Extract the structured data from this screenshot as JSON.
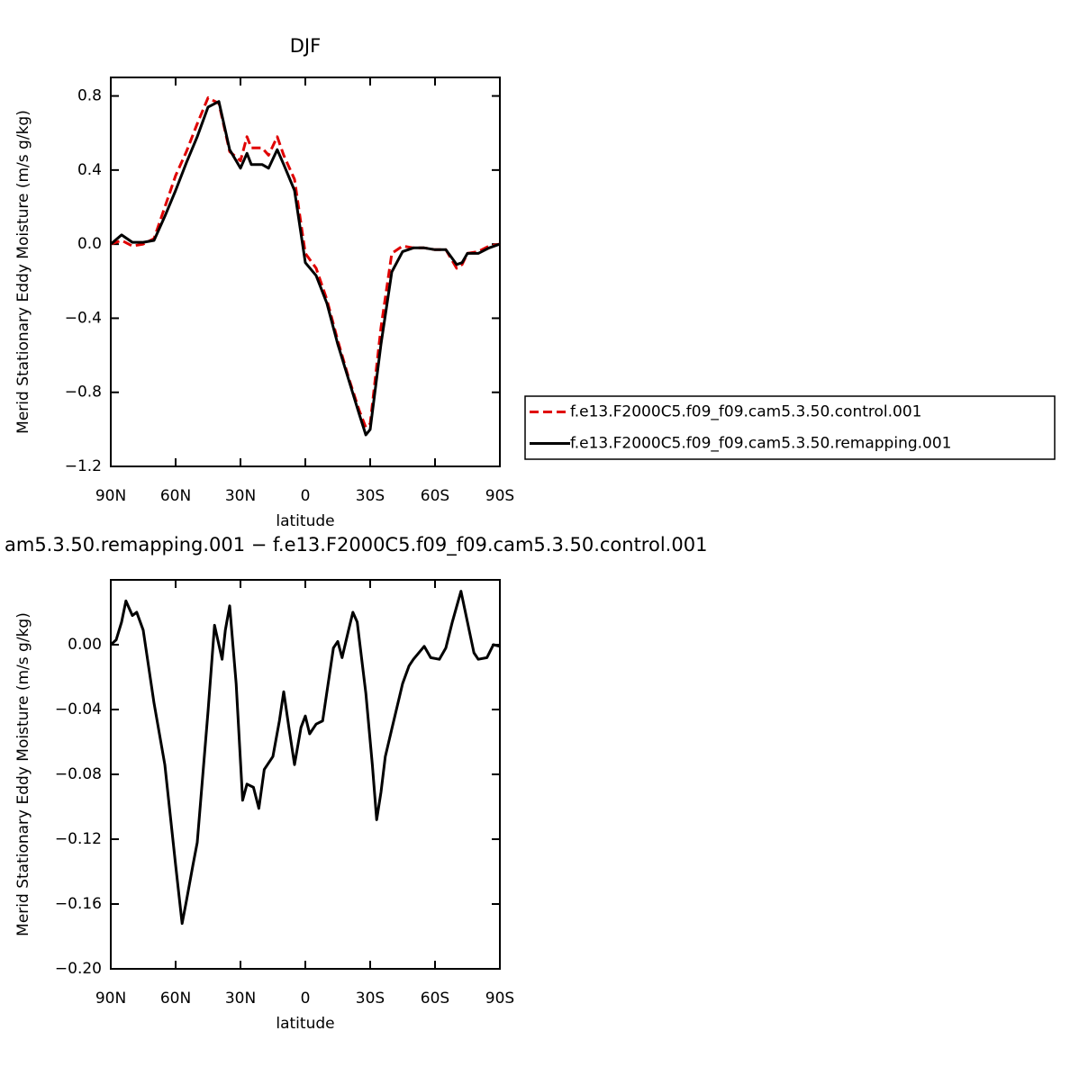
{
  "chart_data": [
    {
      "type": "line",
      "title": "DJF",
      "y_label": "Merid Stationary Eddy Moisture (m/s g/kg)",
      "x_label": "latitude",
      "x": [
        90,
        85,
        80,
        75,
        70,
        65,
        60,
        55,
        50,
        45,
        40,
        35,
        30,
        27,
        25,
        20,
        17,
        13,
        10,
        5,
        0,
        -5,
        -10,
        -15,
        -20,
        -25,
        -28,
        -30,
        -35,
        -40,
        -45,
        -50,
        -55,
        -60,
        -65,
        -70,
        -72.5,
        -75,
        -80,
        -85,
        -90
      ],
      "series": [
        {
          "name": "f.e13.F2000C5.f09_f09.cam5.3.50.control.001",
          "color": "#e00000",
          "line_style": "dashed",
          "values": [
            0.0,
            0.02,
            -0.01,
            0.0,
            0.03,
            0.2,
            0.37,
            0.5,
            0.65,
            0.79,
            0.76,
            0.5,
            0.45,
            0.58,
            0.52,
            0.52,
            0.48,
            0.58,
            0.48,
            0.35,
            -0.05,
            -0.13,
            -0.3,
            -0.52,
            -0.72,
            -0.9,
            -0.99,
            -0.97,
            -0.45,
            -0.05,
            -0.01,
            -0.02,
            -0.02,
            -0.03,
            -0.03,
            -0.13,
            -0.11,
            -0.05,
            -0.04,
            -0.01,
            0.0
          ]
        },
        {
          "name": "f.e13.F2000C5.f09_f09.cam5.3.50.remapping.001",
          "color": "#000000",
          "line_style": "solid",
          "values": [
            0.0,
            0.05,
            0.01,
            0.01,
            0.02,
            0.15,
            0.29,
            0.44,
            0.58,
            0.74,
            0.77,
            0.51,
            0.41,
            0.49,
            0.43,
            0.43,
            0.41,
            0.51,
            0.43,
            0.29,
            -0.1,
            -0.17,
            -0.32,
            -0.54,
            -0.73,
            -0.92,
            -1.03,
            -1.0,
            -0.54,
            -0.15,
            -0.04,
            -0.02,
            -0.02,
            -0.03,
            -0.03,
            -0.11,
            -0.1,
            -0.05,
            -0.05,
            -0.02,
            0.0
          ]
        }
      ],
      "xlim": [
        90,
        -90
      ],
      "xticks": [
        {
          "value": 90,
          "label": "90N"
        },
        {
          "value": 60,
          "label": "60N"
        },
        {
          "value": 30,
          "label": "30N"
        },
        0,
        {
          "value": -30,
          "label": "30S"
        },
        {
          "value": -60,
          "label": "60S"
        },
        {
          "value": -90,
          "label": "90S"
        }
      ],
      "ylim": [
        -1.2,
        0.9
      ],
      "yticks": [
        {
          "value": -1.2,
          "label": "−1.2"
        },
        {
          "value": -0.8,
          "label": "−0.8"
        },
        {
          "value": -0.4,
          "label": "−0.4"
        },
        {
          "value": 0,
          "label": "0.0"
        },
        0.4,
        0.8
      ],
      "legend": "right"
    },
    {
      "type": "line",
      "title": "am5.3.50.remapping.001 − f.e13.F2000C5.f09_f09.cam5.3.50.control.001",
      "y_label": "Merid Stationary Eddy Moisture (m/s g/kg)",
      "x_label": "latitude",
      "x": [
        90,
        87.5,
        85,
        83,
        80,
        78,
        75,
        70,
        65,
        60,
        57,
        55,
        52,
        50,
        45,
        42,
        38.5,
        37,
        35,
        32,
        29,
        27,
        24,
        21.5,
        19,
        15,
        12,
        10,
        7.5,
        5,
        2,
        0,
        -2,
        -5,
        -8,
        -13,
        -15,
        -17,
        -20,
        -22,
        -24,
        -28,
        -31,
        -33,
        -35,
        -37,
        -40,
        -45,
        -48,
        -50,
        -55,
        -58,
        -62,
        -65,
        -68,
        -72,
        -75,
        -78,
        -80,
        -84,
        -87,
        -90
      ],
      "series": [
        {
          "color": "#000000",
          "line_style": "solid",
          "values": [
            0,
            0.003,
            0.014,
            0.027,
            0.018,
            0.02,
            0.009,
            -0.036,
            -0.074,
            -0.136,
            -0.172,
            -0.158,
            -0.136,
            -0.122,
            -0.041,
            0.012,
            -0.009,
            0.009,
            0.024,
            -0.024,
            -0.096,
            -0.086,
            -0.088,
            -0.101,
            -0.077,
            -0.069,
            -0.047,
            -0.029,
            -0.052,
            -0.074,
            -0.051,
            -0.044,
            -0.055,
            -0.049,
            -0.047,
            -0.002,
            0.002,
            -0.008,
            0.009,
            0.02,
            0.014,
            -0.03,
            -0.074,
            -0.108,
            -0.091,
            -0.069,
            -0.052,
            -0.024,
            -0.013,
            -0.009,
            -0.001,
            -0.008,
            -0.009,
            -0.002,
            0.014,
            0.033,
            0.014,
            -0.005,
            -0.009,
            -0.008,
            0,
            -0.001
          ]
        }
      ],
      "xlim": [
        90,
        -90
      ],
      "xticks": [
        {
          "value": 90,
          "label": "90N"
        },
        {
          "value": 60,
          "label": "60N"
        },
        {
          "value": 30,
          "label": "30N"
        },
        0,
        {
          "value": -30,
          "label": "30S"
        },
        {
          "value": -60,
          "label": "60S"
        },
        {
          "value": -90,
          "label": "90S"
        }
      ],
      "ylim": [
        -0.2,
        0.04
      ],
      "yticks": [
        {
          "value": -0.2,
          "label": "−0.20"
        },
        {
          "value": -0.16,
          "label": "−0.16"
        },
        {
          "value": -0.12,
          "label": "−0.12"
        },
        {
          "value": -0.08,
          "label": "−0.08"
        },
        {
          "value": -0.04,
          "label": "−0.04"
        },
        {
          "value": 0,
          "label": "0.00"
        }
      ]
    }
  ]
}
